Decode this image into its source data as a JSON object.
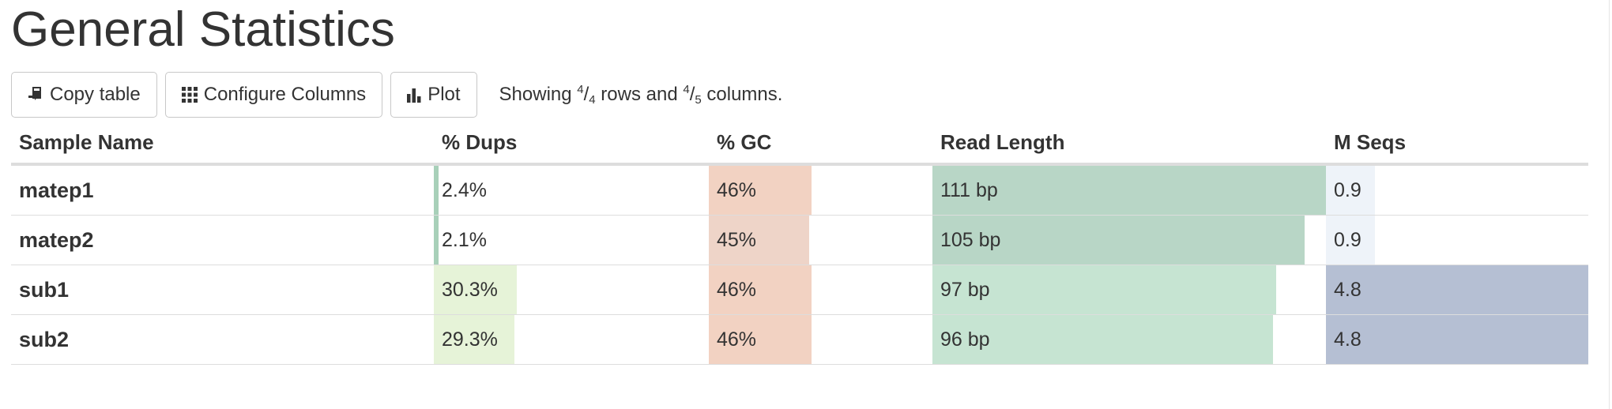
{
  "title": "General Statistics",
  "toolbar": {
    "copy_label": "Copy table",
    "configure_label": "Configure Columns",
    "plot_label": "Plot",
    "status": {
      "prefix": "Showing ",
      "rows_shown": "4",
      "rows_total": "4",
      "mid": " rows and ",
      "cols_shown": "4",
      "cols_total": "5",
      "suffix": " columns."
    }
  },
  "table": {
    "headers": [
      "Sample Name",
      "% Dups",
      "% GC",
      "Read Length",
      "M Seqs"
    ],
    "rows": [
      {
        "name": "matep1",
        "dups": "2.4%",
        "gc": "46%",
        "read_length": "111 bp",
        "mseqs": "0.9"
      },
      {
        "name": "matep2",
        "dups": "2.1%",
        "gc": "45%",
        "read_length": "105 bp",
        "mseqs": "0.9"
      },
      {
        "name": "sub1",
        "dups": "30.3%",
        "gc": "46%",
        "read_length": "97 bp",
        "mseqs": "4.8"
      },
      {
        "name": "sub2",
        "dups": "29.3%",
        "gc": "46%",
        "read_length": "96 bp",
        "mseqs": "4.8"
      }
    ],
    "bar_fill_percent": {
      "dups": [
        2.4,
        2.1,
        30.3,
        29.3
      ],
      "gc": [
        46,
        45,
        46,
        46
      ],
      "read_length": [
        100,
        94.6,
        87.4,
        86.5
      ],
      "mseqs": [
        18.8,
        18.8,
        100,
        100
      ]
    },
    "bar_colors": {
      "dups": [
        "#a8d0b9",
        "#a8d0b9",
        "#e6f3d8",
        "#e6f3d8"
      ],
      "gc": [
        "#f2d2c2",
        "#eed4c8",
        "#f2d2c2",
        "#f2d2c2"
      ],
      "read_length": [
        "#b8d6c6",
        "#b8d6c6",
        "#c6e4d2",
        "#c6e4d2"
      ],
      "mseqs": [
        "#eef3f9",
        "#eef3f9",
        "#b5bfd3",
        "#b5bfd3"
      ]
    }
  }
}
